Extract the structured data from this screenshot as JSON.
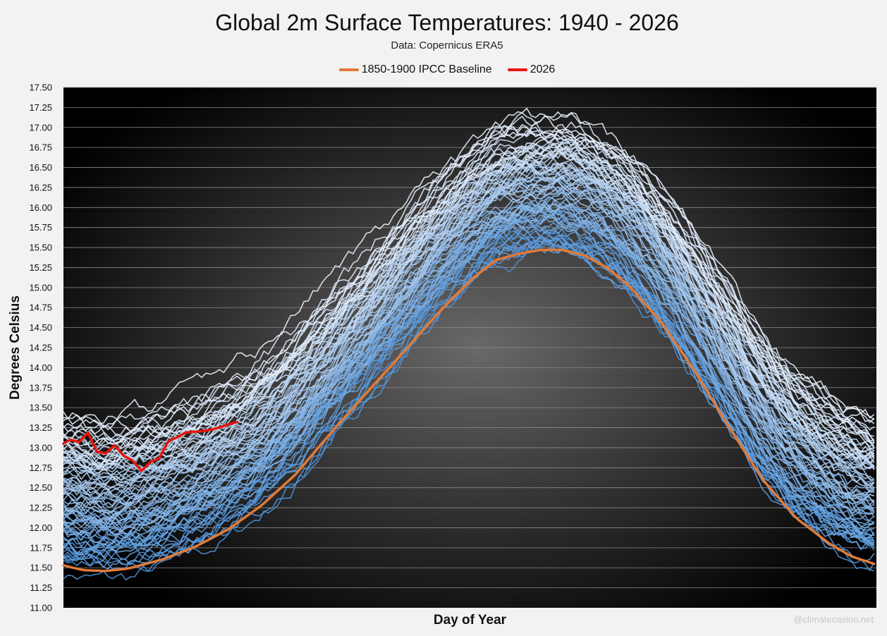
{
  "chart_data": {
    "type": "line",
    "title": "Global 2m Surface Temperatures: 1940 - 2026",
    "subtitle": "Data: Copernicus ERA5",
    "xlabel": "Day of Year",
    "ylabel": "Degrees Celsius",
    "xlim": [
      1,
      366
    ],
    "ylim": [
      11.0,
      17.5
    ],
    "y_tick_step": 0.25,
    "y_tick_labels": [
      "11.00",
      "11.25",
      "11.50",
      "11.75",
      "12.00",
      "12.25",
      "12.50",
      "12.75",
      "13.00",
      "13.25",
      "13.50",
      "13.75",
      "14.00",
      "14.25",
      "14.50",
      "14.75",
      "15.00",
      "15.25",
      "15.50",
      "15.75",
      "16.00",
      "16.25",
      "16.50",
      "16.75",
      "17.00",
      "17.25",
      "17.50"
    ],
    "grid": true,
    "legend_position": "top-center",
    "legend": [
      {
        "name": "1850-1900 IPCC Baseline",
        "color": "#e07b39"
      },
      {
        "name": "2026",
        "color": "#e8140c"
      }
    ],
    "background_years": {
      "range": "1940-2025",
      "count": 86,
      "color_old": "#4a8fd6",
      "color_new": "#e6eefa",
      "approx_min_jan1": 11.5,
      "approx_max_jan1": 13.3,
      "approx_min_peak": 15.45,
      "approx_max_peak": 17.1
    },
    "series": [
      {
        "name": "1850-1900 IPCC Baseline",
        "color": "#e07b39",
        "x": [
          1,
          10,
          20,
          30,
          45,
          60,
          75,
          90,
          105,
          120,
          135,
          150,
          165,
          175,
          185,
          195,
          205,
          215,
          225,
          235,
          245,
          255,
          270,
          285,
          300,
          315,
          330,
          345,
          355,
          366
        ],
        "values": [
          11.53,
          11.47,
          11.46,
          11.49,
          11.6,
          11.76,
          11.98,
          12.28,
          12.66,
          13.15,
          13.62,
          14.08,
          14.55,
          14.85,
          15.12,
          15.34,
          15.42,
          15.47,
          15.47,
          15.4,
          15.25,
          15.02,
          14.55,
          13.93,
          13.25,
          12.6,
          12.12,
          11.8,
          11.64,
          11.54
        ]
      },
      {
        "name": "2026",
        "color": "#e8140c",
        "x": [
          1,
          4,
          8,
          12,
          16,
          20,
          24,
          28,
          32,
          36,
          40,
          44,
          48,
          52,
          56,
          60,
          64,
          68,
          72,
          76,
          79
        ],
        "values": [
          13.05,
          13.1,
          13.07,
          13.19,
          12.95,
          12.93,
          13.03,
          12.9,
          12.84,
          12.71,
          12.82,
          12.87,
          13.08,
          13.13,
          13.19,
          13.2,
          13.21,
          13.23,
          13.26,
          13.3,
          13.32
        ]
      }
    ]
  },
  "watermark": "@climatecasino.net"
}
